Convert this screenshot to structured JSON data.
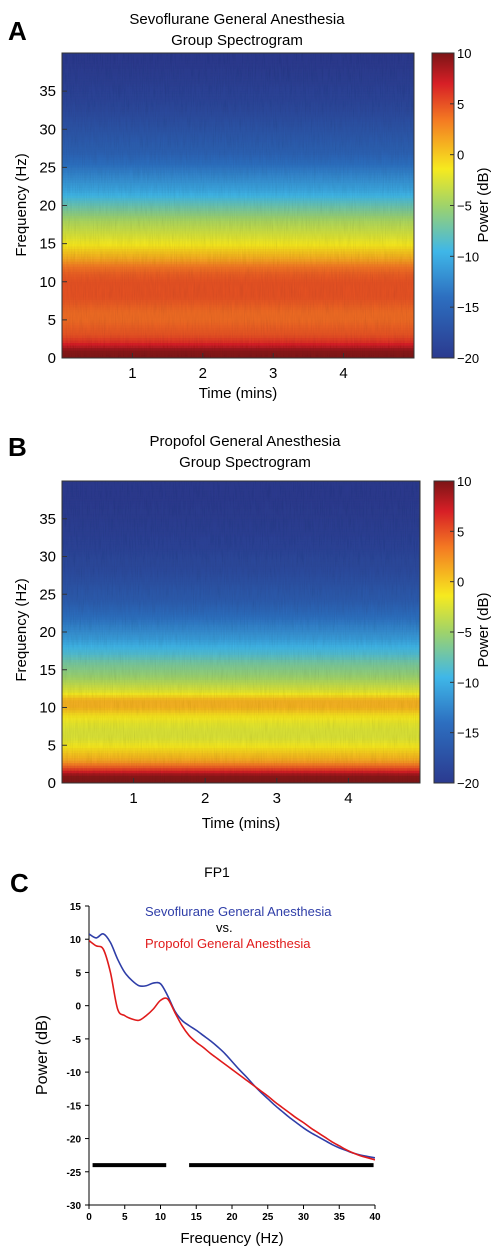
{
  "panels": {
    "a": {
      "letter": "A",
      "title_line1": "Sevoflurane General Anesthesia",
      "title_line2": "Group Spectrogram",
      "ylabel": "Frequency (Hz)",
      "xlabel": "Time (mins)",
      "yticks": [
        "0",
        "5",
        "10",
        "15",
        "20",
        "25",
        "30",
        "35"
      ],
      "xticks": [
        "1",
        "2",
        "3",
        "4"
      ],
      "colorbar_label": "Power (dB)",
      "colorbar_ticks": [
        "10",
        "5",
        "0",
        "−5",
        "−10",
        "−15",
        "−20"
      ]
    },
    "b": {
      "letter": "B",
      "title_line1": "Propofol General Anesthesia",
      "title_line2": "Group Spectrogram",
      "ylabel": "Frequency (Hz)",
      "xlabel": "Time (mins)",
      "yticks": [
        "0",
        "5",
        "10",
        "15",
        "20",
        "25",
        "30",
        "35"
      ],
      "xticks": [
        "1",
        "2",
        "3",
        "4"
      ],
      "colorbar_label": "Power (dB)",
      "colorbar_ticks": [
        "10",
        "5",
        "0",
        "−5",
        "−10",
        "−15",
        "−20"
      ]
    },
    "c": {
      "letter": "C",
      "title": "FP1",
      "legend_1": "Sevoflurane General Anesthesia",
      "legend_vs": "vs.",
      "legend_2": "Propofol General Anesthesia",
      "ylabel": "Power (dB)",
      "xlabel": "Frequency (Hz)",
      "yticks": [
        "15",
        "10",
        "5",
        "0",
        "-5",
        "-10",
        "-15",
        "-20",
        "-25",
        "-30"
      ],
      "xticks": [
        "0",
        "5",
        "10",
        "15",
        "20",
        "25",
        "30",
        "35",
        "40"
      ]
    }
  },
  "colors": {
    "sevoflurane": "#2f3ea8",
    "propofol": "#e01b1b",
    "significance_bar": "#000000"
  },
  "chart_data": [
    {
      "type": "heatmap",
      "title": "Sevoflurane General Anesthesia Group Spectrogram",
      "xlabel": "Time (mins)",
      "ylabel": "Frequency (Hz)",
      "xlim": [
        0,
        5
      ],
      "ylim": [
        0,
        40
      ],
      "color_scale_label": "Power (dB)",
      "color_range": [
        -20,
        10
      ],
      "frequency_hz": [
        0,
        1,
        2,
        3,
        4,
        5,
        6,
        7,
        8,
        9,
        10,
        11,
        12,
        13,
        14,
        15,
        16,
        17,
        18,
        19,
        20,
        21,
        22,
        23,
        24,
        25,
        26,
        27,
        28,
        29,
        30,
        31,
        32,
        33,
        34,
        35,
        36,
        37,
        38,
        39,
        40
      ],
      "mean_power_db": [
        10,
        9.5,
        6.5,
        5,
        4.5,
        4,
        4,
        4.5,
        5,
        5,
        5,
        4.5,
        3.5,
        1.5,
        0,
        -1.5,
        -2.5,
        -3.5,
        -4.5,
        -6,
        -7.5,
        -9,
        -10.5,
        -11.5,
        -12.5,
        -13.5,
        -14.5,
        -15.5,
        -16,
        -16.5,
        -17,
        -17.5,
        -18,
        -18.5,
        -18.8,
        -19,
        -19.3,
        -19.6,
        -19.8,
        -20,
        -20
      ]
    },
    {
      "type": "heatmap",
      "title": "Propofol General Anesthesia Group Spectrogram",
      "xlabel": "Time (mins)",
      "ylabel": "Frequency (Hz)",
      "xlim": [
        0,
        5
      ],
      "ylim": [
        0,
        40
      ],
      "color_scale_label": "Power (dB)",
      "color_range": [
        -20,
        10
      ],
      "frequency_hz": [
        0,
        1,
        2,
        3,
        4,
        5,
        6,
        7,
        8,
        9,
        10,
        11,
        12,
        13,
        14,
        15,
        16,
        17,
        18,
        19,
        20,
        21,
        22,
        23,
        24,
        25,
        26,
        27,
        28,
        29,
        30,
        31,
        32,
        33,
        34,
        35,
        36,
        37,
        38,
        39,
        40
      ],
      "mean_power_db": [
        10,
        9.5,
        5,
        1.5,
        0,
        -1.5,
        -2.5,
        -2.5,
        -2,
        -1,
        1,
        1,
        -2,
        -3.5,
        -5,
        -6,
        -7,
        -8.5,
        -9.5,
        -11,
        -12,
        -13,
        -14,
        -15,
        -16,
        -16.5,
        -17,
        -17.5,
        -18,
        -18.3,
        -18.6,
        -18.9,
        -19.1,
        -19.3,
        -19.5,
        -19.7,
        -19.8,
        -19.9,
        -20,
        -20,
        -20
      ]
    },
    {
      "type": "line",
      "title": "FP1",
      "xlabel": "Frequency (Hz)",
      "ylabel": "Power (dB)",
      "xlim": [
        0,
        40
      ],
      "ylim": [
        -30,
        15
      ],
      "x": [
        0,
        1,
        2,
        3,
        4,
        5,
        6,
        7,
        8,
        9,
        10,
        11,
        12,
        13,
        14,
        15,
        16,
        17,
        18,
        19,
        20,
        21,
        22,
        23,
        24,
        25,
        26,
        27,
        28,
        29,
        30,
        31,
        32,
        33,
        34,
        35,
        36,
        37,
        38,
        39,
        40
      ],
      "series": [
        {
          "name": "Sevoflurane General Anesthesia",
          "values": [
            10.8,
            10.2,
            10.8,
            9.5,
            7,
            5,
            3.8,
            3.0,
            3.0,
            3.4,
            3.3,
            1.5,
            -0.8,
            -2.2,
            -3.0,
            -3.7,
            -4.5,
            -5.3,
            -6.2,
            -7.2,
            -8.4,
            -9.6,
            -10.7,
            -11.9,
            -13.0,
            -14.0,
            -15.0,
            -15.9,
            -16.8,
            -17.6,
            -18.4,
            -19.1,
            -19.7,
            -20.3,
            -20.9,
            -21.4,
            -21.8,
            -22.2,
            -22.5,
            -22.7,
            -22.9
          ]
        },
        {
          "name": "Propofol General Anesthesia",
          "values": [
            9.8,
            9.0,
            8.5,
            5.0,
            -0.5,
            -1.5,
            -2.0,
            -2.2,
            -1.5,
            -0.5,
            0.8,
            1.0,
            -1.0,
            -3.0,
            -4.5,
            -5.5,
            -6.3,
            -7.2,
            -8.0,
            -8.8,
            -9.6,
            -10.4,
            -11.2,
            -12.0,
            -12.8,
            -13.6,
            -14.5,
            -15.3,
            -16.1,
            -16.9,
            -17.6,
            -18.4,
            -19.1,
            -19.8,
            -20.5,
            -21.1,
            -21.7,
            -22.2,
            -22.6,
            -22.9,
            -23.2
          ]
        }
      ],
      "significance_bars": [
        {
          "x_start": 0.5,
          "x_end": 10.8,
          "y": -24
        },
        {
          "x_start": 14,
          "x_end": 39.8,
          "y": -24
        }
      ]
    }
  ]
}
